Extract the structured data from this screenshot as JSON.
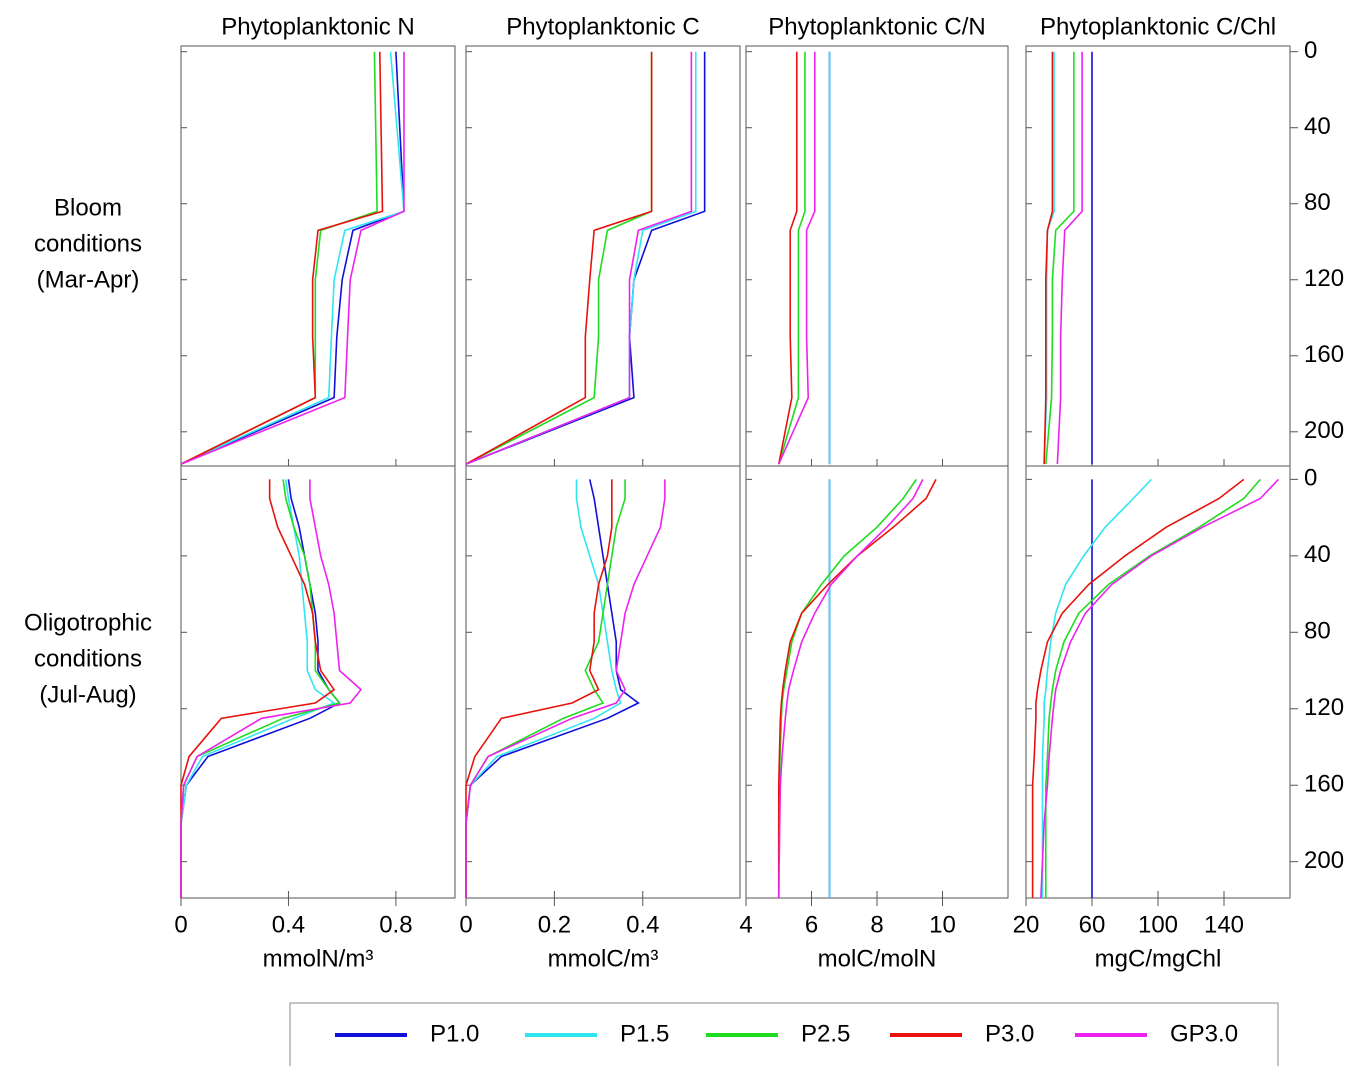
{
  "row_labels": [
    [
      "Bloom",
      "conditions",
      "(Mar-Apr)"
    ],
    [
      "Oligotrophic",
      "conditions",
      "(Jul-Aug)"
    ]
  ],
  "chart_data": [
    {
      "type": "line",
      "title": "Phytoplanktonic N",
      "xlim": [
        0,
        1.02
      ],
      "xticks": [
        0,
        0.4,
        0.8
      ],
      "ylim": [
        218,
        -3
      ],
      "yticks": [
        0,
        40,
        80,
        120,
        160,
        200
      ],
      "y": [
        0,
        84,
        94,
        120,
        150,
        182,
        217
      ],
      "series": [
        {
          "name": "P1.0",
          "color": "#1010d8",
          "values": [
            0.8,
            0.83,
            0.64,
            0.6,
            0.58,
            0.57,
            0
          ]
        },
        {
          "name": "P1.5",
          "color": "#30e6f0",
          "values": [
            0.78,
            0.83,
            0.61,
            0.57,
            0.56,
            0.55,
            0
          ]
        },
        {
          "name": "P2.5",
          "color": "#20dc20",
          "values": [
            0.72,
            0.73,
            0.52,
            0.5,
            0.5,
            0.5,
            0
          ]
        },
        {
          "name": "P3.0",
          "color": "#e8120c",
          "values": [
            0.74,
            0.75,
            0.51,
            0.49,
            0.49,
            0.5,
            0
          ]
        },
        {
          "name": "GP3.0",
          "color": "#ee22ee",
          "values": [
            0.83,
            0.83,
            0.67,
            0.63,
            0.62,
            0.61,
            0
          ]
        }
      ]
    },
    {
      "type": "line",
      "title": "Phytoplanktonic C",
      "xlim": [
        0,
        0.62
      ],
      "xticks": [
        0,
        0.2,
        0.4
      ],
      "ylim": [
        218,
        -3
      ],
      "yticks": [
        0,
        40,
        80,
        120,
        160,
        200
      ],
      "y": [
        0,
        84,
        94,
        120,
        150,
        182,
        217
      ],
      "series": [
        {
          "name": "P1.0",
          "color": "#1010d8",
          "values": [
            0.54,
            0.54,
            0.42,
            0.38,
            0.37,
            0.38,
            0
          ]
        },
        {
          "name": "P1.5",
          "color": "#30e6f0",
          "values": [
            0.52,
            0.52,
            0.4,
            0.38,
            0.37,
            0.37,
            0
          ]
        },
        {
          "name": "P2.5",
          "color": "#20dc20",
          "values": [
            0.42,
            0.42,
            0.32,
            0.3,
            0.3,
            0.29,
            0
          ]
        },
        {
          "name": "P3.0",
          "color": "#e8120c",
          "values": [
            0.42,
            0.42,
            0.29,
            0.28,
            0.27,
            0.27,
            0
          ]
        },
        {
          "name": "GP3.0",
          "color": "#ee22ee",
          "values": [
            0.51,
            0.51,
            0.39,
            0.37,
            0.37,
            0.37,
            0
          ]
        }
      ]
    },
    {
      "type": "line",
      "title": "Phytoplanktonic C/N",
      "xlim": [
        4,
        12
      ],
      "xticks": [
        4,
        6,
        8,
        10
      ],
      "ylim": [
        218,
        -3
      ],
      "yticks": [
        0,
        40,
        80,
        120,
        160,
        200
      ],
      "y": [
        0,
        84,
        94,
        120,
        150,
        182,
        217
      ],
      "series": [
        {
          "name": "P1.0",
          "color": "#1010d8",
          "values": [
            6.55,
            6.55,
            6.55,
            6.55,
            6.55,
            6.55,
            6.55
          ]
        },
        {
          "name": "P1.5",
          "color": "#30e6f0",
          "values": [
            6.55,
            6.55,
            6.55,
            6.55,
            6.55,
            6.55,
            6.55
          ]
        },
        {
          "name": "P2.5",
          "color": "#20dc20",
          "values": [
            5.8,
            5.8,
            5.6,
            5.6,
            5.6,
            5.6,
            5.0
          ]
        },
        {
          "name": "P3.0",
          "color": "#e8120c",
          "values": [
            5.55,
            5.55,
            5.35,
            5.35,
            5.35,
            5.4,
            5.0
          ]
        },
        {
          "name": "GP3.0",
          "color": "#ee22ee",
          "values": [
            6.1,
            6.1,
            5.85,
            5.85,
            5.85,
            5.9,
            5.0
          ]
        }
      ]
    },
    {
      "type": "line",
      "title": "Phytoplanktonic C/Chl",
      "xlim": [
        20,
        180
      ],
      "xticks": [
        20,
        60,
        100,
        140
      ],
      "ylim": [
        218,
        -3
      ],
      "yticks": [
        0,
        40,
        80,
        120,
        160,
        200
      ],
      "y": [
        0,
        84,
        94,
        120,
        150,
        182,
        217
      ],
      "series": [
        {
          "name": "P1.0",
          "color": "#1010d8",
          "values": [
            60,
            60,
            60,
            60,
            60,
            60,
            60
          ]
        },
        {
          "name": "P1.5",
          "color": "#30e6f0",
          "values": [
            37,
            37,
            33,
            32.5,
            32.5,
            32.5,
            31
          ]
        },
        {
          "name": "P2.5",
          "color": "#20dc20",
          "values": [
            49,
            49,
            38,
            36,
            36,
            35.5,
            32
          ]
        },
        {
          "name": "P3.0",
          "color": "#e8120c",
          "values": [
            36,
            36,
            33,
            32,
            32,
            32,
            31
          ]
        },
        {
          "name": "GP3.0",
          "color": "#ee22ee",
          "values": [
            54,
            54,
            43.5,
            42,
            41,
            41,
            39
          ]
        }
      ]
    },
    {
      "type": "line",
      "xlabel": "mmolN/m³",
      "xlim": [
        0,
        1.02
      ],
      "xticks": [
        0,
        0.4,
        0.8
      ],
      "ylim": [
        219,
        -7
      ],
      "yticks": [
        0,
        40,
        80,
        120,
        160,
        200
      ],
      "y": [
        0,
        10,
        25,
        40,
        55,
        70,
        85,
        100,
        110,
        117,
        125,
        145,
        160,
        180,
        219
      ],
      "series": [
        {
          "name": "P1.0",
          "color": "#1010d8",
          "values": [
            0.4,
            0.41,
            0.44,
            0.46,
            0.48,
            0.5,
            0.51,
            0.51,
            0.55,
            0.59,
            0.48,
            0.1,
            0.02,
            0,
            0
          ]
        },
        {
          "name": "P1.5",
          "color": "#30e6f0",
          "values": [
            0.39,
            0.4,
            0.42,
            0.44,
            0.45,
            0.46,
            0.47,
            0.47,
            0.5,
            0.57,
            0.42,
            0.08,
            0.02,
            0,
            0
          ]
        },
        {
          "name": "P2.5",
          "color": "#20dc20",
          "values": [
            0.38,
            0.39,
            0.42,
            0.46,
            0.48,
            0.49,
            0.5,
            0.5,
            0.55,
            0.59,
            0.38,
            0.06,
            0.01,
            0,
            0
          ]
        },
        {
          "name": "P3.0",
          "color": "#e8120c",
          "values": [
            0.33,
            0.33,
            0.36,
            0.41,
            0.46,
            0.49,
            0.5,
            0.52,
            0.57,
            0.5,
            0.15,
            0.03,
            0,
            0,
            0
          ]
        },
        {
          "name": "GP3.0",
          "color": "#ee22ee",
          "values": [
            0.48,
            0.48,
            0.5,
            0.52,
            0.55,
            0.57,
            0.58,
            0.59,
            0.67,
            0.63,
            0.3,
            0.06,
            0.01,
            0,
            0
          ]
        }
      ]
    },
    {
      "type": "line",
      "xlabel": "mmolC/m³",
      "xlim": [
        0,
        0.62
      ],
      "xticks": [
        0,
        0.2,
        0.4
      ],
      "ylim": [
        219,
        -7
      ],
      "yticks": [
        0,
        40,
        80,
        120,
        160,
        200
      ],
      "y": [
        0,
        10,
        25,
        40,
        55,
        70,
        85,
        100,
        110,
        117,
        125,
        145,
        160,
        180,
        219
      ],
      "series": [
        {
          "name": "P1.0",
          "color": "#1010d8",
          "values": [
            0.28,
            0.29,
            0.3,
            0.31,
            0.32,
            0.33,
            0.34,
            0.34,
            0.35,
            0.39,
            0.32,
            0.08,
            0.01,
            0,
            0
          ]
        },
        {
          "name": "P1.5",
          "color": "#30e6f0",
          "values": [
            0.25,
            0.25,
            0.26,
            0.28,
            0.3,
            0.31,
            0.32,
            0.33,
            0.34,
            0.35,
            0.29,
            0.07,
            0.01,
            0,
            0
          ]
        },
        {
          "name": "P2.5",
          "color": "#20dc20",
          "values": [
            0.36,
            0.36,
            0.34,
            0.33,
            0.32,
            0.31,
            0.3,
            0.27,
            0.29,
            0.31,
            0.22,
            0.05,
            0.01,
            0,
            0
          ]
        },
        {
          "name": "P3.0",
          "color": "#e8120c",
          "values": [
            0.33,
            0.33,
            0.33,
            0.32,
            0.3,
            0.29,
            0.29,
            0.28,
            0.3,
            0.24,
            0.08,
            0.02,
            0,
            0,
            0
          ]
        },
        {
          "name": "GP3.0",
          "color": "#ee22ee",
          "values": [
            0.45,
            0.45,
            0.44,
            0.41,
            0.38,
            0.36,
            0.35,
            0.34,
            0.36,
            0.34,
            0.24,
            0.05,
            0.01,
            0,
            0
          ]
        }
      ]
    },
    {
      "type": "line",
      "xlabel": "molC/molN",
      "xlim": [
        4,
        12
      ],
      "xticks": [
        4,
        6,
        8,
        10
      ],
      "ylim": [
        219,
        -7
      ],
      "yticks": [
        0,
        40,
        80,
        120,
        160,
        200
      ],
      "y": [
        0,
        10,
        25,
        40,
        55,
        70,
        85,
        100,
        110,
        117,
        125,
        145,
        160,
        180,
        219
      ],
      "series": [
        {
          "name": "P1.0",
          "color": "#1010d8",
          "values": [
            6.55,
            6.55,
            6.55,
            6.55,
            6.55,
            6.55,
            6.55,
            6.55,
            6.55,
            6.55,
            6.55,
            6.55,
            6.55,
            6.55,
            6.55
          ]
        },
        {
          "name": "P1.5",
          "color": "#30e6f0",
          "values": [
            6.55,
            6.55,
            6.55,
            6.55,
            6.55,
            6.55,
            6.55,
            6.55,
            6.55,
            6.55,
            6.55,
            6.55,
            6.55,
            6.55,
            6.55
          ]
        },
        {
          "name": "P2.5",
          "color": "#20dc20",
          "values": [
            9.2,
            8.8,
            8.0,
            7.0,
            6.3,
            5.7,
            5.4,
            5.25,
            5.15,
            5.1,
            5.08,
            5.04,
            5.02,
            5.0,
            5.0
          ]
        },
        {
          "name": "P3.0",
          "color": "#e8120c",
          "values": [
            9.8,
            9.5,
            8.5,
            7.4,
            6.5,
            5.7,
            5.35,
            5.2,
            5.12,
            5.08,
            5.05,
            5.02,
            5.0,
            5.0,
            5.0
          ]
        },
        {
          "name": "GP3.0",
          "color": "#ee22ee",
          "values": [
            9.4,
            9.1,
            8.3,
            7.4,
            6.6,
            6.1,
            5.7,
            5.45,
            5.3,
            5.25,
            5.2,
            5.1,
            5.05,
            5.03,
            5.0
          ]
        }
      ]
    },
    {
      "type": "line",
      "xlabel": "mgC/mgChl",
      "xlim": [
        20,
        180
      ],
      "xticks": [
        20,
        60,
        100,
        140
      ],
      "ylim": [
        219,
        -7
      ],
      "yticks": [
        0,
        40,
        80,
        120,
        160,
        200
      ],
      "y": [
        0,
        10,
        25,
        40,
        55,
        70,
        85,
        100,
        110,
        117,
        125,
        145,
        160,
        180,
        219
      ],
      "series": [
        {
          "name": "P1.0",
          "color": "#1010d8",
          "values": [
            60,
            60,
            60,
            60,
            60,
            60,
            60,
            60,
            60,
            60,
            60,
            60,
            60,
            60,
            60
          ]
        },
        {
          "name": "P1.5",
          "color": "#30e6f0",
          "values": [
            96,
            85,
            68,
            55,
            44,
            38,
            35,
            33,
            32,
            31,
            31,
            30,
            30,
            30,
            30
          ]
        },
        {
          "name": "P2.5",
          "color": "#20dc20",
          "values": [
            162,
            152,
            125,
            95,
            70,
            52,
            43,
            38,
            36,
            35,
            34,
            33,
            32,
            32,
            32
          ]
        },
        {
          "name": "P3.0",
          "color": "#e8120c",
          "values": [
            152,
            137,
            105,
            80,
            58,
            42,
            33,
            29,
            27,
            26,
            26,
            25,
            24,
            24,
            24
          ]
        },
        {
          "name": "GP3.0",
          "color": "#ee22ee",
          "values": [
            173,
            162,
            127,
            96,
            72,
            56,
            47,
            41,
            38,
            37,
            36,
            34,
            33,
            31,
            29
          ]
        }
      ]
    }
  ]
}
